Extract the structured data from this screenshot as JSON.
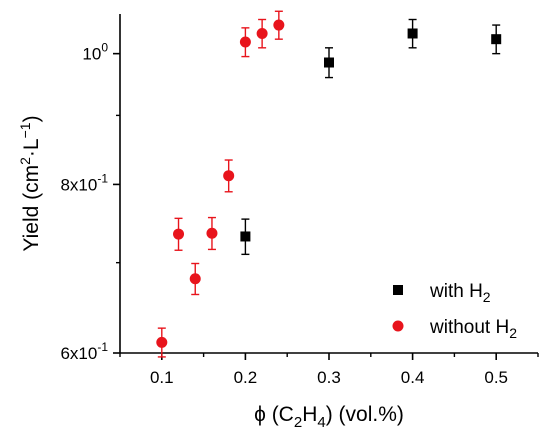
{
  "chart_data": {
    "type": "scatter",
    "y_scale": "log",
    "xlim": [
      0.05,
      0.55
    ],
    "ylim": [
      0.6,
      1.07
    ],
    "x_ticks": [
      0.1,
      0.2,
      0.3,
      0.4,
      0.5
    ],
    "x_tick_labels": [
      "0.1",
      "0.2",
      "0.3",
      "0.4",
      "0.5"
    ],
    "y_ticks": [
      {
        "value": 0.6,
        "mantissa": "6x10",
        "exp": "-1"
      },
      {
        "value": 0.8,
        "mantissa": "8x10",
        "exp": "-1"
      },
      {
        "value": 1.0,
        "mantissa": "10",
        "exp": "0"
      }
    ],
    "xlabel": {
      "prefix": "ϕ (C",
      "sub1": "2",
      "mid": "H",
      "sub2": "4",
      "suffix": ") (vol.%)"
    },
    "ylabel": {
      "prefix": "Yield (cm",
      "sup1": "2",
      "mid": "·L",
      "sup2": "−1",
      "suffix": ")"
    },
    "legend_position": "bottom-right",
    "series": [
      {
        "name": "with H2",
        "label_main": "with H",
        "label_sub": "2",
        "marker": "square",
        "color": "#000000",
        "points": [
          {
            "x": 0.2,
            "y": 0.732,
            "err": 0.022
          },
          {
            "x": 0.3,
            "y": 0.985,
            "err": 0.025
          },
          {
            "x": 0.4,
            "y": 1.035,
            "err": 0.025
          },
          {
            "x": 0.5,
            "y": 1.025,
            "err": 0.025
          }
        ]
      },
      {
        "name": "without H2",
        "label_main": "without H",
        "label_sub": "2",
        "marker": "circle",
        "color": "#e8141c",
        "points": [
          {
            "x": 0.1,
            "y": 0.611,
            "err": 0.015
          },
          {
            "x": 0.12,
            "y": 0.735,
            "err": 0.02
          },
          {
            "x": 0.14,
            "y": 0.681,
            "err": 0.018
          },
          {
            "x": 0.16,
            "y": 0.736,
            "err": 0.02
          },
          {
            "x": 0.18,
            "y": 0.812,
            "err": 0.022
          },
          {
            "x": 0.2,
            "y": 1.02,
            "err": 0.025
          },
          {
            "x": 0.22,
            "y": 1.035,
            "err": 0.025
          },
          {
            "x": 0.24,
            "y": 1.05,
            "err": 0.025
          }
        ]
      }
    ]
  }
}
